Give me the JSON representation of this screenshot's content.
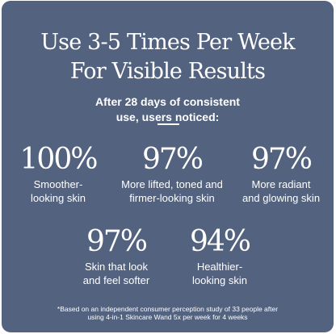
{
  "colors": {
    "card_background": "#52627f",
    "text": "#ffffff"
  },
  "headline": {
    "line1": "Use 3-5 Times Per Week",
    "line2": "For Visible Results"
  },
  "intro": {
    "line1": "After 28 days of consistent",
    "line2": "use, users noticed:"
  },
  "stats": [
    {
      "percent": "100%",
      "line1": "Smoother-",
      "line2": "looking skin"
    },
    {
      "percent": "97%",
      "line1": "More lifted, toned and",
      "line2": "firmer-looking skin"
    },
    {
      "percent": "97%",
      "line1": "More radiant",
      "line2": "and glowing skin"
    },
    {
      "percent": "97%",
      "line1": "Skin that look",
      "line2": "and feel softer"
    },
    {
      "percent": "94%",
      "line1": "Healthier-",
      "line2": "looking skin"
    }
  ],
  "footnote": {
    "line1": "*Based on an independent consumer perception study of 33 people after",
    "line2": "using 4-in-1 Skincare Wand 5x per week for 4 weeks"
  }
}
